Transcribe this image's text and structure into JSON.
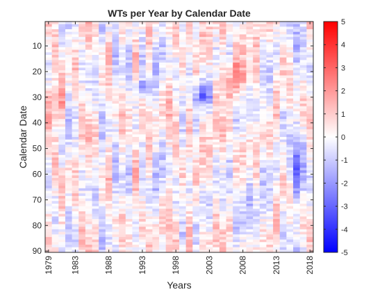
{
  "chart_data": {
    "type": "heatmap",
    "title": "WTs per Year by Calendar Date",
    "xlabel": "Years",
    "ylabel": "Calendar Date",
    "x_range": [
      1979,
      2018
    ],
    "y_range": [
      1,
      90
    ],
    "x_ticks": [
      "1979",
      "1983",
      "1988",
      "1993",
      "1998",
      "2003",
      "2008",
      "2013",
      "2018"
    ],
    "y_ticks": [
      "10",
      "20",
      "30",
      "40",
      "50",
      "60",
      "70",
      "80",
      "90"
    ],
    "colorbar": {
      "min": -5,
      "max": 5,
      "ticks": [
        "5",
        "4",
        "3",
        "2",
        "1",
        "0",
        "-1",
        "-2",
        "-3",
        "-4",
        "-5"
      ],
      "colormap": "blue-white-red",
      "low_color": "#0000ff",
      "mid_color": "#ffffff",
      "high_color": "#ff0000"
    },
    "y_reversed": true,
    "grid": false,
    "value_range_shown": [
      -3.5,
      3.5
    ],
    "notable_features": [
      {
        "years": [
          2001,
          2003
        ],
        "dates": [
          25,
          32
        ],
        "sign": "negative"
      },
      {
        "years": [
          1992,
          1994
        ],
        "dates": [
          25,
          28
        ],
        "sign": "negative"
      },
      {
        "years": [
          2005,
          2009
        ],
        "dates": [
          15,
          30
        ],
        "sign": "positive"
      },
      {
        "years": [
          1979,
          1981
        ],
        "dates": [
          25,
          40
        ],
        "sign": "positive"
      }
    ]
  }
}
